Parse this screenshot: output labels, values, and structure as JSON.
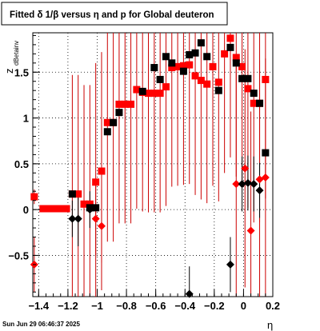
{
  "title": "Fitted δ 1/β versus η and p for Global deuteron",
  "footer": "Sun Jun 29 06:46:37 2025",
  "colors": {
    "red": "#ff0000",
    "black": "#000000",
    "grid": "#000000",
    "errbar_red": "#cc0000"
  },
  "chart_data": {
    "type": "scatter",
    "title": "Fitted δ 1/β versus η and p for Global deuteron",
    "xlabel": "η",
    "ylabel": "z",
    "ylabel_sub": "dBetainv",
    "xlim": [
      -1.44,
      0.2
    ],
    "ylim": [
      -0.95,
      1.93
    ],
    "xticks": [
      -1.4,
      -1.2,
      -1,
      -0.8,
      -0.6,
      -0.4,
      -0.2,
      0,
      0.2
    ],
    "xtick_labels": [
      "−1.4",
      "−1.2",
      "−1",
      "−0.8",
      "−0.6",
      "−0.4",
      "−0.2",
      "0",
      "0.2"
    ],
    "yticks": [
      -0.5,
      0,
      0.5,
      1,
      1.5
    ],
    "ytick_labels": [
      "−0.5",
      "0",
      "0.5",
      "1",
      "1.5"
    ],
    "grid": true,
    "series": [
      {
        "marker": "square",
        "color": "#ff0000",
        "points": [
          {
            "x": -1.43,
            "y": 0.14,
            "err": 0.08
          },
          {
            "x": -1.37,
            "y": 0.01,
            "err": 0.02
          },
          {
            "x": -1.33,
            "y": 0.01,
            "err": 0.02
          },
          {
            "x": -1.29,
            "y": 0.01,
            "err": 0.02
          },
          {
            "x": -1.25,
            "y": 0.01,
            "err": 0.02
          },
          {
            "x": -1.21,
            "y": 0.01,
            "err": 0.02
          },
          {
            "x": -1.17,
            "y": 0.17,
            "err": 1.3
          },
          {
            "x": -1.13,
            "y": 0.17,
            "err": 1.3
          },
          {
            "x": -1.09,
            "y": 0.06,
            "err": 1.3
          },
          {
            "x": -1.05,
            "y": 0.06,
            "err": 1.3
          },
          {
            "x": -1.01,
            "y": 0.3,
            "err": 1.3
          },
          {
            "x": -0.97,
            "y": 0.42,
            "err": 1.3
          },
          {
            "x": -0.93,
            "y": 0.95,
            "err": 1.3
          },
          {
            "x": -0.89,
            "y": 0.95,
            "err": 1.3
          },
          {
            "x": -0.85,
            "y": 1.15,
            "err": 1.3
          },
          {
            "x": -0.81,
            "y": 1.15,
            "err": 1.3
          },
          {
            "x": -0.77,
            "y": 1.15,
            "err": 1.3
          },
          {
            "x": -0.73,
            "y": 1.31,
            "err": 1.3
          },
          {
            "x": -0.69,
            "y": 1.28,
            "err": 1.3
          },
          {
            "x": -0.65,
            "y": 1.27,
            "err": 1.3
          },
          {
            "x": -0.61,
            "y": 1.27,
            "err": 1.3
          },
          {
            "x": -0.57,
            "y": 1.27,
            "err": 1.3
          },
          {
            "x": -0.53,
            "y": 1.34,
            "err": 1.3
          },
          {
            "x": -0.49,
            "y": 1.55,
            "err": 1.3
          },
          {
            "x": -0.45,
            "y": 1.56,
            "err": 1.3
          },
          {
            "x": -0.41,
            "y": 1.57,
            "err": 1.3
          },
          {
            "x": -0.37,
            "y": 1.58,
            "err": 1.3
          },
          {
            "x": -0.33,
            "y": 1.46,
            "err": 1.3
          },
          {
            "x": -0.29,
            "y": 1.41,
            "err": 1.3
          },
          {
            "x": -0.25,
            "y": 1.37,
            "err": 1.3
          },
          {
            "x": -0.21,
            "y": 1.56,
            "err": 1.3
          },
          {
            "x": -0.17,
            "y": 1.39,
            "err": 1.3
          },
          {
            "x": -0.13,
            "y": 1.7,
            "err": 1.3
          },
          {
            "x": -0.09,
            "y": 1.87,
            "err": 1.3
          },
          {
            "x": -0.05,
            "y": 1.66,
            "err": 1.3
          },
          {
            "x": -0.01,
            "y": 1.56,
            "err": 1.3
          },
          {
            "x": 0.03,
            "y": 1.32,
            "err": 1.3
          },
          {
            "x": 0.07,
            "y": 1.16,
            "err": 1.3
          },
          {
            "x": 0.11,
            "y": 1.16,
            "err": 1.3
          },
          {
            "x": 0.15,
            "y": 1.42,
            "err": 1.3
          }
        ]
      },
      {
        "marker": "square",
        "color": "#000000",
        "points": [
          {
            "x": -1.17,
            "y": 0.17
          },
          {
            "x": -1.05,
            "y": 0.02
          },
          {
            "x": -1.01,
            "y": 0.02
          },
          {
            "x": -0.93,
            "y": 0.85
          },
          {
            "x": -0.89,
            "y": 0.95
          },
          {
            "x": -0.85,
            "y": 1.06
          },
          {
            "x": -0.69,
            "y": 1.29
          },
          {
            "x": -0.61,
            "y": 1.55
          },
          {
            "x": -0.57,
            "y": 1.42
          },
          {
            "x": -0.53,
            "y": 1.67
          },
          {
            "x": -0.49,
            "y": 1.6
          },
          {
            "x": -0.41,
            "y": 1.51
          },
          {
            "x": -0.37,
            "y": 1.69
          },
          {
            "x": -0.33,
            "y": 1.71
          },
          {
            "x": -0.29,
            "y": 1.82
          },
          {
            "x": -0.25,
            "y": 1.67
          },
          {
            "x": -0.17,
            "y": 1.3
          },
          {
            "x": -0.09,
            "y": 1.77
          },
          {
            "x": -0.05,
            "y": 1.6
          },
          {
            "x": -0.01,
            "y": 1.43
          },
          {
            "x": 0.03,
            "y": 1.43
          },
          {
            "x": 0.07,
            "y": 1.27
          },
          {
            "x": 0.11,
            "y": 1.16
          },
          {
            "x": 0.15,
            "y": 0.62
          }
        ]
      },
      {
        "marker": "diamond",
        "color": "#ff0000",
        "points": [
          {
            "x": -1.43,
            "y": -0.6,
            "err": 0.3
          },
          {
            "x": -1.01,
            "y": -0.1,
            "err": 0.4
          },
          {
            "x": -0.97,
            "y": -0.18,
            "err": 0.4
          },
          {
            "x": -0.05,
            "y": 0.28,
            "err": 1.3
          },
          {
            "x": 0.01,
            "y": 0.45,
            "err": 1.3
          },
          {
            "x": 0.05,
            "y": -0.23,
            "err": 1.3
          },
          {
            "x": 0.11,
            "y": 0.33,
            "err": 1.3
          },
          {
            "x": 0.15,
            "y": 0.35,
            "err": 1.3
          }
        ]
      },
      {
        "marker": "diamond",
        "color": "#000000",
        "points": [
          {
            "x": -1.17,
            "y": -0.1,
            "err": 0.2
          },
          {
            "x": -1.13,
            "y": -0.1,
            "err": 0.3
          },
          {
            "x": -1.05,
            "y": 0.0,
            "err": 0.2
          },
          {
            "x": -0.37,
            "y": -0.92,
            "err": 0.3
          },
          {
            "x": -0.09,
            "y": -0.6,
            "err": 0.3
          },
          {
            "x": -0.01,
            "y": 0.28,
            "err": 0.3
          },
          {
            "x": 0.03,
            "y": 0.29,
            "err": 0.3
          },
          {
            "x": 0.07,
            "y": 0.28,
            "err": 0.3
          },
          {
            "x": 0.11,
            "y": 0.21,
            "err": 0.3
          }
        ]
      }
    ]
  }
}
